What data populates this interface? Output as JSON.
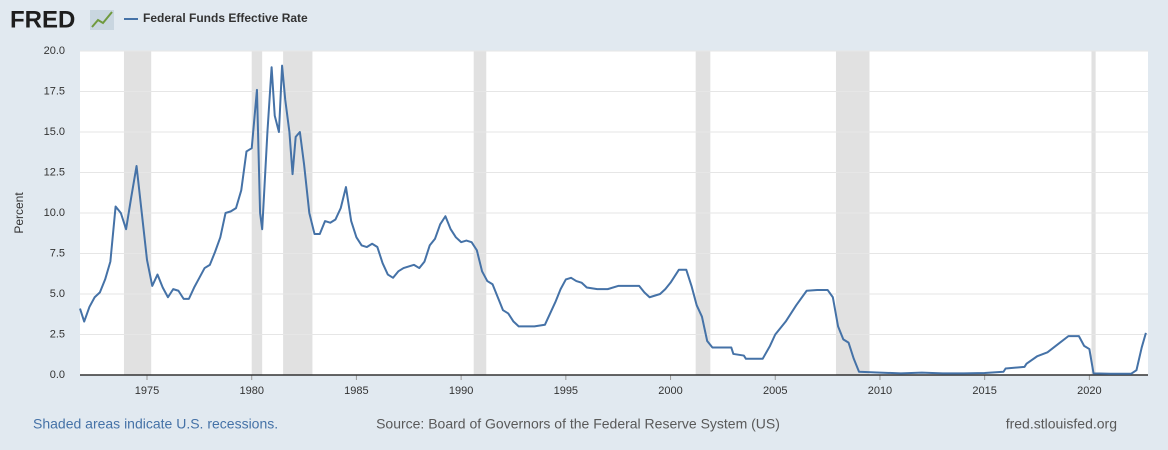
{
  "logo": "FRED",
  "footer": {
    "recession_note": "Shaded areas indicate U.S. recessions.",
    "source": "Source: Board of Governors of the Federal Reserve System (US)",
    "site": "fred.stlouisfed.org"
  },
  "chart_data": {
    "type": "line",
    "y_label": "Percent",
    "x": [
      1971.8,
      1972.0,
      1972.25,
      1972.5,
      1972.75,
      1973.0,
      1973.25,
      1973.5,
      1973.75,
      1974.0,
      1974.25,
      1974.5,
      1974.75,
      1975.0,
      1975.25,
      1975.5,
      1975.75,
      1976.0,
      1976.25,
      1976.5,
      1976.75,
      1977.0,
      1977.25,
      1977.5,
      1977.75,
      1978.0,
      1978.25,
      1978.5,
      1978.75,
      1979.0,
      1979.25,
      1979.5,
      1979.75,
      1980.0,
      1980.25,
      1980.4,
      1980.5,
      1980.75,
      1980.95,
      1981.1,
      1981.3,
      1981.45,
      1981.6,
      1981.8,
      1981.95,
      1982.1,
      1982.3,
      1982.5,
      1982.75,
      1983.0,
      1983.25,
      1983.5,
      1983.75,
      1984.0,
      1984.25,
      1984.5,
      1984.75,
      1985.0,
      1985.25,
      1985.5,
      1985.75,
      1986.0,
      1986.25,
      1986.5,
      1986.75,
      1987.0,
      1987.25,
      1987.5,
      1987.75,
      1988.0,
      1988.25,
      1988.5,
      1988.75,
      1989.0,
      1989.25,
      1989.5,
      1989.75,
      1990.0,
      1990.25,
      1990.5,
      1990.75,
      1991.0,
      1991.25,
      1991.5,
      1991.75,
      1992.0,
      1992.25,
      1992.5,
      1992.75,
      1993.0,
      1993.5,
      1994.0,
      1994.25,
      1994.5,
      1994.75,
      1995.0,
      1995.25,
      1995.5,
      1995.75,
      1996.0,
      1996.5,
      1997.0,
      1997.5,
      1998.0,
      1998.5,
      1998.75,
      1999.0,
      1999.5,
      1999.75,
      2000.0,
      2000.4,
      2000.75,
      2001.0,
      2001.25,
      2001.5,
      2001.75,
      2002.0,
      2002.5,
      2002.9,
      2003.0,
      2003.5,
      2003.6,
      2004.0,
      2004.4,
      2004.75,
      2005.0,
      2005.5,
      2006.0,
      2006.5,
      2007.0,
      2007.5,
      2007.75,
      2008.0,
      2008.25,
      2008.5,
      2008.75,
      2009.0,
      2010.0,
      2011.0,
      2012.0,
      2013.0,
      2014.0,
      2015.0,
      2015.9,
      2016.0,
      2016.9,
      2017.0,
      2017.5,
      2018.0,
      2018.5,
      2019.0,
      2019.5,
      2019.75,
      2020.0,
      2020.2,
      2021.0,
      2022.0,
      2022.25,
      2022.5,
      2022.7
    ],
    "series": [
      {
        "name": "Federal Funds Effective Rate",
        "color": "#4572a7",
        "values": [
          4.1,
          3.3,
          4.2,
          4.8,
          5.1,
          5.9,
          7.0,
          10.4,
          10.0,
          9.0,
          11.0,
          12.9,
          10.0,
          7.1,
          5.5,
          6.2,
          5.4,
          4.8,
          5.3,
          5.2,
          4.7,
          4.7,
          5.4,
          6.0,
          6.6,
          6.8,
          7.6,
          8.5,
          10.0,
          10.1,
          10.3,
          11.4,
          13.8,
          14.0,
          17.6,
          10.0,
          9.0,
          15.0,
          19.0,
          16.0,
          15.0,
          19.1,
          17.0,
          15.0,
          12.4,
          14.7,
          15.0,
          13.0,
          10.0,
          8.7,
          8.7,
          9.5,
          9.4,
          9.6,
          10.3,
          11.6,
          9.5,
          8.5,
          8.0,
          7.9,
          8.1,
          7.9,
          6.9,
          6.2,
          6.0,
          6.4,
          6.6,
          6.7,
          6.8,
          6.6,
          7.0,
          8.0,
          8.4,
          9.3,
          9.8,
          9.0,
          8.5,
          8.2,
          8.3,
          8.2,
          7.7,
          6.4,
          5.8,
          5.6,
          4.8,
          4.0,
          3.8,
          3.3,
          3.0,
          3.0,
          3.0,
          3.1,
          3.8,
          4.5,
          5.3,
          5.9,
          6.0,
          5.8,
          5.7,
          5.4,
          5.3,
          5.3,
          5.5,
          5.5,
          5.5,
          5.1,
          4.8,
          5.0,
          5.3,
          5.7,
          6.5,
          6.5,
          5.5,
          4.3,
          3.6,
          2.1,
          1.7,
          1.7,
          1.7,
          1.3,
          1.2,
          1.0,
          1.0,
          1.0,
          1.8,
          2.5,
          3.3,
          4.3,
          5.2,
          5.25,
          5.25,
          4.8,
          3.0,
          2.2,
          2.0,
          1.0,
          0.2,
          0.15,
          0.1,
          0.15,
          0.1,
          0.1,
          0.12,
          0.2,
          0.4,
          0.5,
          0.7,
          1.15,
          1.4,
          1.9,
          2.4,
          2.4,
          1.8,
          1.6,
          0.1,
          0.08,
          0.08,
          0.3,
          1.7,
          2.6
        ]
      }
    ],
    "recessions": [
      [
        1973.9,
        1975.2
      ],
      [
        1980.0,
        1980.5
      ],
      [
        1981.5,
        1982.9
      ],
      [
        1990.6,
        1991.2
      ],
      [
        2001.2,
        2001.9
      ],
      [
        2007.9,
        2009.5
      ],
      [
        2020.1,
        2020.3
      ]
    ],
    "xlim": [
      1971.8,
      2022.8
    ],
    "xticks": [
      1975,
      1980,
      1985,
      1990,
      1995,
      2000,
      2005,
      2010,
      2015,
      2020
    ],
    "ylim": [
      0,
      20
    ],
    "yticks": [
      {
        "value": 0,
        "label": "0.0"
      },
      2.5,
      {
        "value": 5,
        "label": "5.0"
      },
      7.5,
      {
        "value": 10,
        "label": "10.0"
      },
      12.5,
      {
        "value": 15,
        "label": "15.0"
      },
      17.5,
      {
        "value": 20,
        "label": "20.0"
      }
    ],
    "grid": true,
    "recession_color": "#e1e1e1"
  }
}
